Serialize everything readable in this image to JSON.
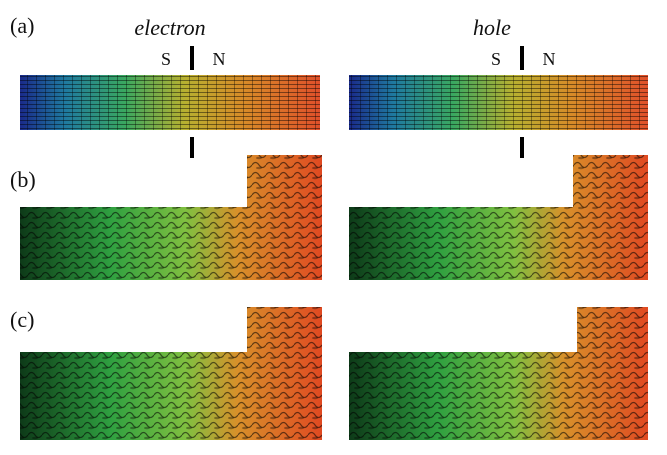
{
  "panels": [
    {
      "label": "(a)"
    },
    {
      "label": "(b)"
    },
    {
      "label": "(c)"
    }
  ],
  "columns": [
    "electron",
    "hole"
  ],
  "interface": {
    "left": "S",
    "right": "N"
  }
}
